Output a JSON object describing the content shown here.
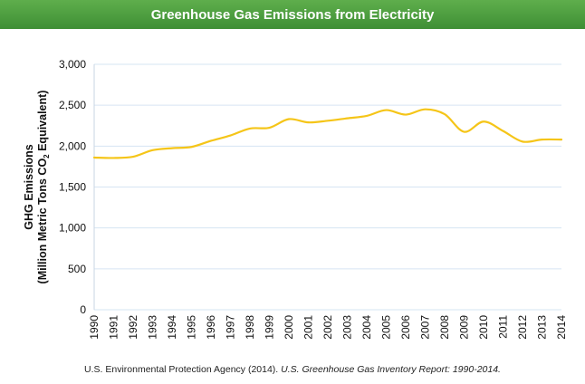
{
  "title": "Greenhouse Gas Emissions from Electricity",
  "caption": {
    "source": "U.S. Environmental Protection Agency (2014).",
    "report": "U.S. Greenhouse Gas Inventory Report: 1990-2014."
  },
  "chart_data": {
    "type": "line",
    "title": "Greenhouse Gas Emissions from Electricity",
    "ylabel_line1": "GHG Emissions",
    "ylabel_line2_prefix": "(Million Metric Tons CO",
    "ylabel_line2_sub": "2",
    "ylabel_line2_suffix": " Equivalent)",
    "xlabel": "",
    "ylim": [
      0,
      3000
    ],
    "yticks": [
      0,
      500,
      1000,
      1500,
      2000,
      2500,
      3000
    ],
    "ytick_labels": [
      "0",
      "500",
      "1,000",
      "1,500",
      "2,000",
      "2,500",
      "3,000"
    ],
    "grid": true,
    "line_color": "#f5c518",
    "grid_color": "#d6e4f3",
    "x": [
      "1990",
      "1991",
      "1992",
      "1993",
      "1994",
      "1995",
      "1996",
      "1997",
      "1998",
      "1999",
      "2000",
      "2001",
      "2002",
      "2003",
      "2004",
      "2005",
      "2006",
      "2007",
      "2008",
      "2009",
      "2010",
      "2011",
      "2012",
      "2013",
      "2014"
    ],
    "series": [
      {
        "values": [
          1860,
          1855,
          1870,
          1950,
          1975,
          1990,
          2065,
          2130,
          2215,
          2225,
          2330,
          2290,
          2310,
          2340,
          2370,
          2440,
          2385,
          2450,
          2390,
          2175,
          2300,
          2185,
          2055,
          2080,
          2080
        ]
      }
    ]
  }
}
